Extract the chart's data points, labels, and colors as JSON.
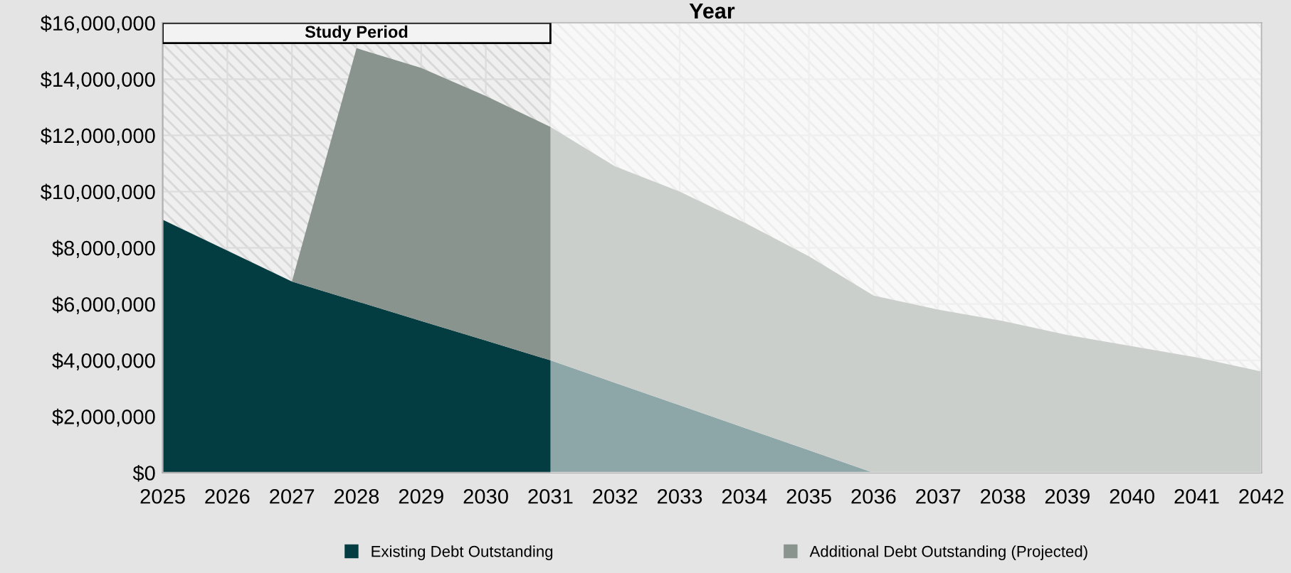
{
  "chart_data": {
    "type": "area",
    "stacked": true,
    "title": "Year",
    "x": [
      2025,
      2026,
      2027,
      2028,
      2029,
      2030,
      2031,
      2032,
      2033,
      2034,
      2035,
      2036,
      2037,
      2038,
      2039,
      2040,
      2041,
      2042
    ],
    "series": [
      {
        "name": "Existing Debt Outstanding",
        "color": "#033d42",
        "values": [
          9000000,
          7900000,
          6800000,
          6100000,
          5400000,
          4700000,
          4000000,
          3200000,
          2400000,
          1600000,
          800000,
          0,
          0,
          0,
          0,
          0,
          0,
          0
        ]
      },
      {
        "name": "Additional Debt Outstanding (Projected)",
        "color": "#8a948e",
        "values": [
          0,
          0,
          0,
          9000000,
          9000000,
          8700000,
          8300000,
          7700000,
          7600000,
          7300000,
          6900000,
          6300000,
          5800000,
          5400000,
          4900000,
          4500000,
          4100000,
          3600000
        ]
      }
    ],
    "xlim": [
      2025,
      2042
    ],
    "xticks": [
      2025,
      2026,
      2027,
      2028,
      2029,
      2030,
      2031,
      2032,
      2033,
      2034,
      2035,
      2036,
      2037,
      2038,
      2039,
      2040,
      2041,
      2042
    ],
    "ylim": [
      0,
      16000000
    ],
    "yticks": [
      {
        "value": 0,
        "label": "$0"
      },
      {
        "value": 2000000,
        "label": "$2,000,000"
      },
      {
        "value": 4000000,
        "label": "$4,000,000"
      },
      {
        "value": 6000000,
        "label": "$6,000,000"
      },
      {
        "value": 8000000,
        "label": "$8,000,000"
      },
      {
        "value": 10000000,
        "label": "$10,000,000"
      },
      {
        "value": 12000000,
        "label": "$12,000,000"
      },
      {
        "value": 14000000,
        "label": "$14,000,000"
      },
      {
        "value": 16000000,
        "label": "$16,000,000"
      }
    ],
    "bands": [
      {
        "axis": "x",
        "from": 2025,
        "to": 2031,
        "label": "Study Period"
      },
      {
        "axis": "x",
        "from": 2031,
        "to": 2042,
        "color": "#ffffff"
      }
    ],
    "grid": true,
    "legend": "bottom"
  }
}
